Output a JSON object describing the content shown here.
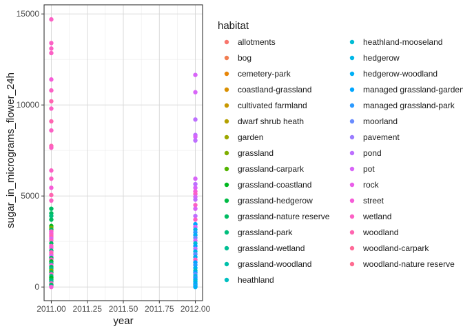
{
  "chart_data": {
    "type": "scatter",
    "title": "",
    "xlabel": "year",
    "ylabel": "sugar_in_micrograms_flower_24h",
    "xlim": [
      1950.0,
      2012.05
    ],
    "ylim": [
      -750,
      15500
    ],
    "xticks": [
      2011.0,
      2011.25,
      2011.5,
      2011.75,
      2012.0
    ],
    "xtick_labels": [
      "2011.00",
      "2011.25",
      "2011.50",
      "2011.75",
      "2012.00"
    ],
    "yticks": [
      0,
      5000,
      10000,
      15000
    ],
    "ytick_labels": [
      "0",
      "5000",
      "10000",
      "15000"
    ],
    "grid": true,
    "legend_position": "right",
    "legend": {
      "title": "habitat",
      "entries": [
        {
          "name": "allotments",
          "color": "#F8766D"
        },
        {
          "name": "bog",
          "color": "#F17D51"
        },
        {
          "name": "cemetery-park",
          "color": "#E78609"
        },
        {
          "name": "coastland-grassland",
          "color": "#D98F00"
        },
        {
          "name": "cultivated farmland",
          "color": "#C89800"
        },
        {
          "name": "dwarf shrub heath",
          "color": "#B4A000"
        },
        {
          "name": "garden",
          "color": "#9CA700"
        },
        {
          "name": "grassland",
          "color": "#7FAE00"
        },
        {
          "name": "grassland-carpark",
          "color": "#52B400"
        },
        {
          "name": "grassland-coastland",
          "color": "#00B81F"
        },
        {
          "name": "grassland-hedgerow",
          "color": "#00BA44"
        },
        {
          "name": "grassland-nature reserve",
          "color": "#00BC62"
        },
        {
          "name": "grassland-park",
          "color": "#00BE7C"
        },
        {
          "name": "grassland-wetland",
          "color": "#00BF94"
        },
        {
          "name": "grassland-woodland",
          "color": "#00C0AB"
        },
        {
          "name": "heathland",
          "color": "#00BFC1"
        },
        {
          "name": "heathland-mooseland",
          "color": "#00BCD4"
        },
        {
          "name": "hedgerow",
          "color": "#00B7E7"
        },
        {
          "name": "hedgerow-woodland",
          "color": "#00B0F6"
        },
        {
          "name": "managed grassland-garden",
          "color": "#00A6FF"
        },
        {
          "name": "managed grassland-park",
          "color": "#2B9AFF"
        },
        {
          "name": "moorland",
          "color": "#698CFF"
        },
        {
          "name": "pavement",
          "color": "#9A7CFF"
        },
        {
          "name": "pond",
          "color": "#BD6FFF"
        },
        {
          "name": "pot",
          "color": "#D865F8"
        },
        {
          "name": "rock",
          "color": "#EA5DE9"
        },
        {
          "name": "street",
          "color": "#F65CD8"
        },
        {
          "name": "wetland",
          "color": "#FC60C5"
        },
        {
          "name": "woodland",
          "color": "#FF65B0"
        },
        {
          "name": "woodland-carpark",
          "color": "#FF6A98"
        },
        {
          "name": "woodland-nature reserve",
          "color": "#FF6C91"
        }
      ]
    },
    "points": [
      {
        "x": 2011,
        "y": 14700,
        "c": 27
      },
      {
        "x": 2011,
        "y": 13400,
        "c": 27
      },
      {
        "x": 2011,
        "y": 13100,
        "c": 27
      },
      {
        "x": 2011,
        "y": 12850,
        "c": 27
      },
      {
        "x": 2011,
        "y": 11400,
        "c": 26
      },
      {
        "x": 2011,
        "y": 10800,
        "c": 27
      },
      {
        "x": 2011,
        "y": 10200,
        "c": 28
      },
      {
        "x": 2011,
        "y": 9800,
        "c": 27
      },
      {
        "x": 2011,
        "y": 9100,
        "c": 28
      },
      {
        "x": 2011,
        "y": 8600,
        "c": 27
      },
      {
        "x": 2011,
        "y": 7750,
        "c": 28
      },
      {
        "x": 2011,
        "y": 7650,
        "c": 27
      },
      {
        "x": 2011,
        "y": 6400,
        "c": 27
      },
      {
        "x": 2011,
        "y": 5950,
        "c": 27
      },
      {
        "x": 2011,
        "y": 5450,
        "c": 26
      },
      {
        "x": 2011,
        "y": 5050,
        "c": 28
      },
      {
        "x": 2011,
        "y": 4750,
        "c": 27
      },
      {
        "x": 2011,
        "y": 4300,
        "c": 11
      },
      {
        "x": 2011,
        "y": 4050,
        "c": 11
      },
      {
        "x": 2011,
        "y": 3900,
        "c": 12
      },
      {
        "x": 2011,
        "y": 3700,
        "c": 11
      },
      {
        "x": 2011,
        "y": 3350,
        "c": 9
      },
      {
        "x": 2011,
        "y": 3250,
        "c": 7
      },
      {
        "x": 2011,
        "y": 3150,
        "c": 11
      },
      {
        "x": 2011,
        "y": 3050,
        "c": 27
      },
      {
        "x": 2011,
        "y": 2950,
        "c": 26
      },
      {
        "x": 2011,
        "y": 2850,
        "c": 27
      },
      {
        "x": 2011,
        "y": 2750,
        "c": 28
      },
      {
        "x": 2011,
        "y": 2650,
        "c": 24
      },
      {
        "x": 2011,
        "y": 2550,
        "c": 27
      },
      {
        "x": 2011,
        "y": 2400,
        "c": 11
      },
      {
        "x": 2011,
        "y": 2250,
        "c": 27
      },
      {
        "x": 2011,
        "y": 2150,
        "c": 26
      },
      {
        "x": 2011,
        "y": 2000,
        "c": 12
      },
      {
        "x": 2011,
        "y": 1900,
        "c": 27
      },
      {
        "x": 2011,
        "y": 1800,
        "c": 28
      },
      {
        "x": 2011,
        "y": 1700,
        "c": 24
      },
      {
        "x": 2011,
        "y": 1600,
        "c": 11
      },
      {
        "x": 2011,
        "y": 1500,
        "c": 27
      },
      {
        "x": 2011,
        "y": 1400,
        "c": 9
      },
      {
        "x": 2011,
        "y": 1300,
        "c": 12
      },
      {
        "x": 2011,
        "y": 1200,
        "c": 26
      },
      {
        "x": 2011,
        "y": 1100,
        "c": 11
      },
      {
        "x": 2011,
        "y": 1000,
        "c": 13
      },
      {
        "x": 2011,
        "y": 900,
        "c": 7
      },
      {
        "x": 2011,
        "y": 800,
        "c": 11
      },
      {
        "x": 2011,
        "y": 700,
        "c": 27
      },
      {
        "x": 2011,
        "y": 600,
        "c": 12
      },
      {
        "x": 2011,
        "y": 500,
        "c": 9
      },
      {
        "x": 2011,
        "y": 400,
        "c": 11
      },
      {
        "x": 2011,
        "y": 300,
        "c": 13
      },
      {
        "x": 2011,
        "y": 200,
        "c": 27
      },
      {
        "x": 2011,
        "y": 120,
        "c": 11
      },
      {
        "x": 2011,
        "y": 50,
        "c": 12
      },
      {
        "x": 2011,
        "y": 0,
        "c": 26
      },
      {
        "x": 2012,
        "y": 11650,
        "c": 24
      },
      {
        "x": 2012,
        "y": 10700,
        "c": 24
      },
      {
        "x": 2012,
        "y": 9200,
        "c": 23
      },
      {
        "x": 2012,
        "y": 8350,
        "c": 23
      },
      {
        "x": 2012,
        "y": 8250,
        "c": 24
      },
      {
        "x": 2012,
        "y": 8050,
        "c": 23
      },
      {
        "x": 2012,
        "y": 5950,
        "c": 24
      },
      {
        "x": 2012,
        "y": 5650,
        "c": 23
      },
      {
        "x": 2012,
        "y": 5450,
        "c": 24
      },
      {
        "x": 2012,
        "y": 5250,
        "c": 26
      },
      {
        "x": 2012,
        "y": 5100,
        "c": 27
      },
      {
        "x": 2012,
        "y": 4950,
        "c": 24
      },
      {
        "x": 2012,
        "y": 4800,
        "c": 23
      },
      {
        "x": 2012,
        "y": 4500,
        "c": 27
      },
      {
        "x": 2012,
        "y": 4300,
        "c": 24
      },
      {
        "x": 2012,
        "y": 3900,
        "c": 23
      },
      {
        "x": 2012,
        "y": 3700,
        "c": 27
      },
      {
        "x": 2012,
        "y": 3450,
        "c": 19
      },
      {
        "x": 2012,
        "y": 3300,
        "c": 24
      },
      {
        "x": 2012,
        "y": 3150,
        "c": 17
      },
      {
        "x": 2012,
        "y": 3000,
        "c": 20
      },
      {
        "x": 2012,
        "y": 2850,
        "c": 18
      },
      {
        "x": 2012,
        "y": 2700,
        "c": 21
      },
      {
        "x": 2012,
        "y": 2550,
        "c": 24
      },
      {
        "x": 2012,
        "y": 2400,
        "c": 16
      },
      {
        "x": 2012,
        "y": 2250,
        "c": 19
      },
      {
        "x": 2012,
        "y": 2100,
        "c": 23
      },
      {
        "x": 2012,
        "y": 1950,
        "c": 17
      },
      {
        "x": 2012,
        "y": 1800,
        "c": 21
      },
      {
        "x": 2012,
        "y": 1650,
        "c": 18
      },
      {
        "x": 2012,
        "y": 1500,
        "c": 27
      },
      {
        "x": 2012,
        "y": 1350,
        "c": 19
      },
      {
        "x": 2012,
        "y": 1200,
        "c": 20
      },
      {
        "x": 2012,
        "y": 1050,
        "c": 18
      },
      {
        "x": 2012,
        "y": 900,
        "c": 15
      },
      {
        "x": 2012,
        "y": 800,
        "c": 19
      },
      {
        "x": 2012,
        "y": 700,
        "c": 21
      },
      {
        "x": 2012,
        "y": 600,
        "c": 17
      },
      {
        "x": 2012,
        "y": 500,
        "c": 20
      },
      {
        "x": 2012,
        "y": 400,
        "c": 18
      },
      {
        "x": 2012,
        "y": 300,
        "c": 16
      },
      {
        "x": 2012,
        "y": 200,
        "c": 19
      },
      {
        "x": 2012,
        "y": 120,
        "c": 17
      },
      {
        "x": 2012,
        "y": 50,
        "c": 20
      },
      {
        "x": 2012,
        "y": 0,
        "c": 18
      }
    ]
  }
}
